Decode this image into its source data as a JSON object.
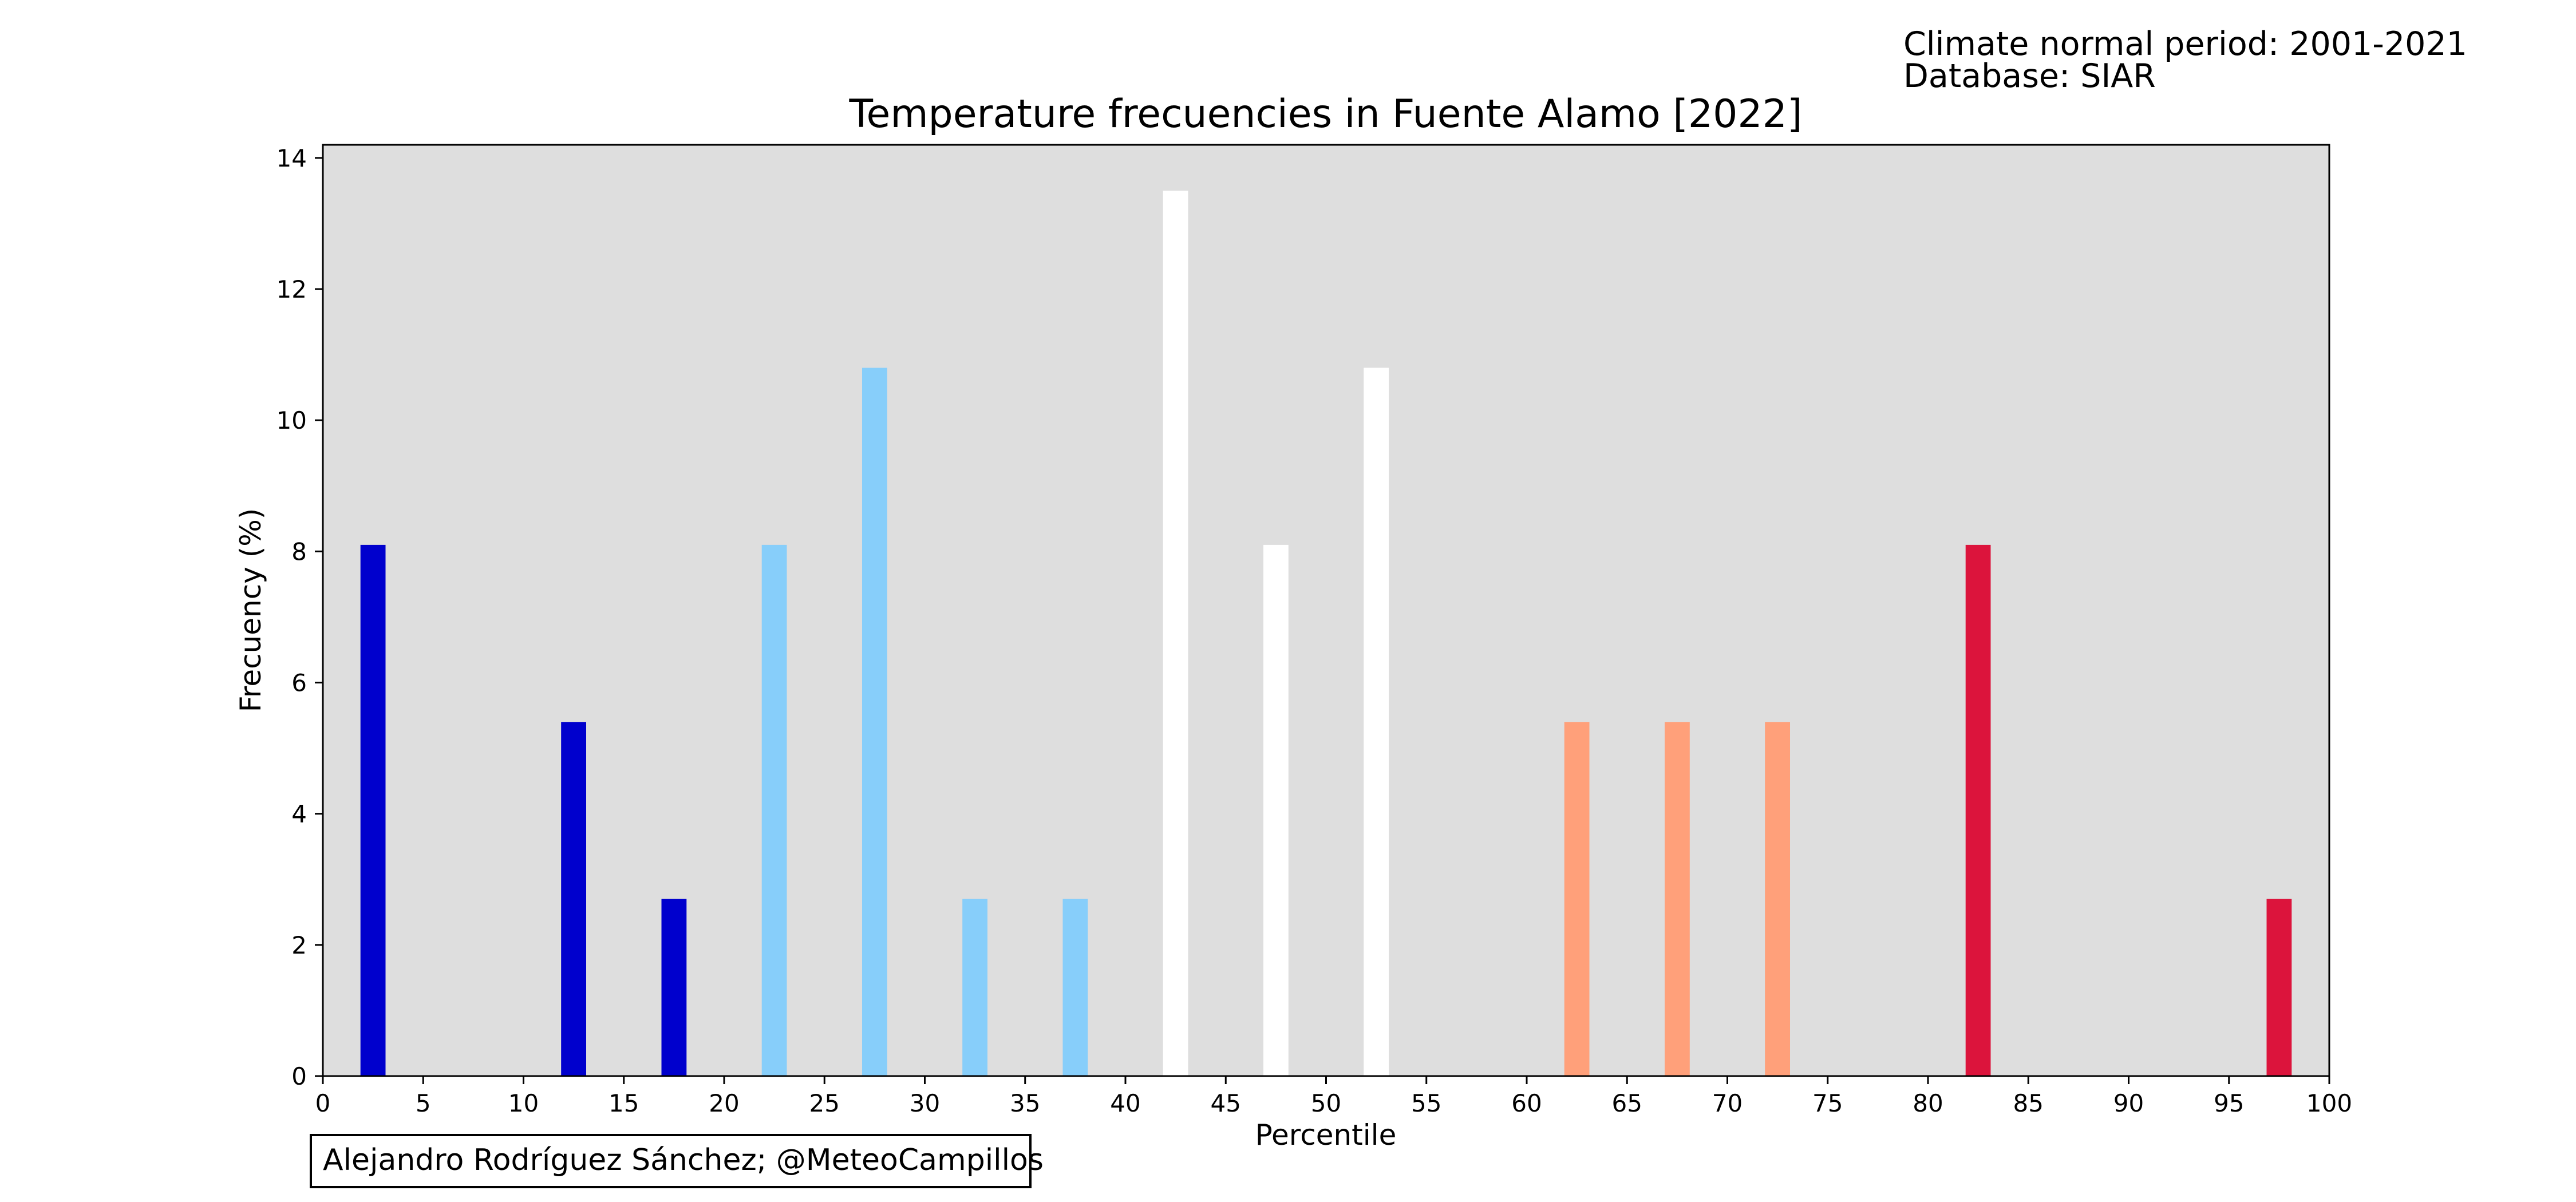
{
  "header": {
    "info_line1": "Climate normal period: 2001-2021",
    "info_line2": "Database: SIAR"
  },
  "footer": {
    "credit": "Alejandro Rodríguez Sánchez; @MeteoCampillos"
  },
  "chart_data": {
    "type": "bar",
    "title": "Temperature frecuencies in Fuente Alamo [2022]",
    "xlabel": "Percentile",
    "ylabel": "Frecuency (%)",
    "xlim": [
      0,
      100
    ],
    "ylim": [
      0,
      14.2
    ],
    "xticks": [
      0,
      5,
      10,
      15,
      20,
      25,
      30,
      35,
      40,
      45,
      50,
      55,
      60,
      65,
      70,
      75,
      80,
      85,
      90,
      95,
      100
    ],
    "yticks": [
      0,
      2,
      4,
      6,
      8,
      10,
      12,
      14
    ],
    "background": "#dedede",
    "bar_width": 1.25,
    "bars": [
      {
        "x": 2.5,
        "value": 8.1,
        "color": "#0000cd"
      },
      {
        "x": 12.5,
        "value": 5.4,
        "color": "#0000cd"
      },
      {
        "x": 17.5,
        "value": 2.7,
        "color": "#0000cd"
      },
      {
        "x": 22.5,
        "value": 8.1,
        "color": "#87cefa"
      },
      {
        "x": 27.5,
        "value": 10.8,
        "color": "#87cefa"
      },
      {
        "x": 32.5,
        "value": 2.7,
        "color": "#87cefa"
      },
      {
        "x": 37.5,
        "value": 2.7,
        "color": "#87cefa"
      },
      {
        "x": 42.5,
        "value": 13.5,
        "color": "#ffffff"
      },
      {
        "x": 47.5,
        "value": 8.1,
        "color": "#ffffff"
      },
      {
        "x": 52.5,
        "value": 10.8,
        "color": "#ffffff"
      },
      {
        "x": 62.5,
        "value": 5.4,
        "color": "#ffa07a"
      },
      {
        "x": 67.5,
        "value": 5.4,
        "color": "#ffa07a"
      },
      {
        "x": 72.5,
        "value": 5.4,
        "color": "#ffa07a"
      },
      {
        "x": 82.5,
        "value": 8.1,
        "color": "#dc143c"
      },
      {
        "x": 97.5,
        "value": 2.7,
        "color": "#dc143c"
      }
    ]
  }
}
